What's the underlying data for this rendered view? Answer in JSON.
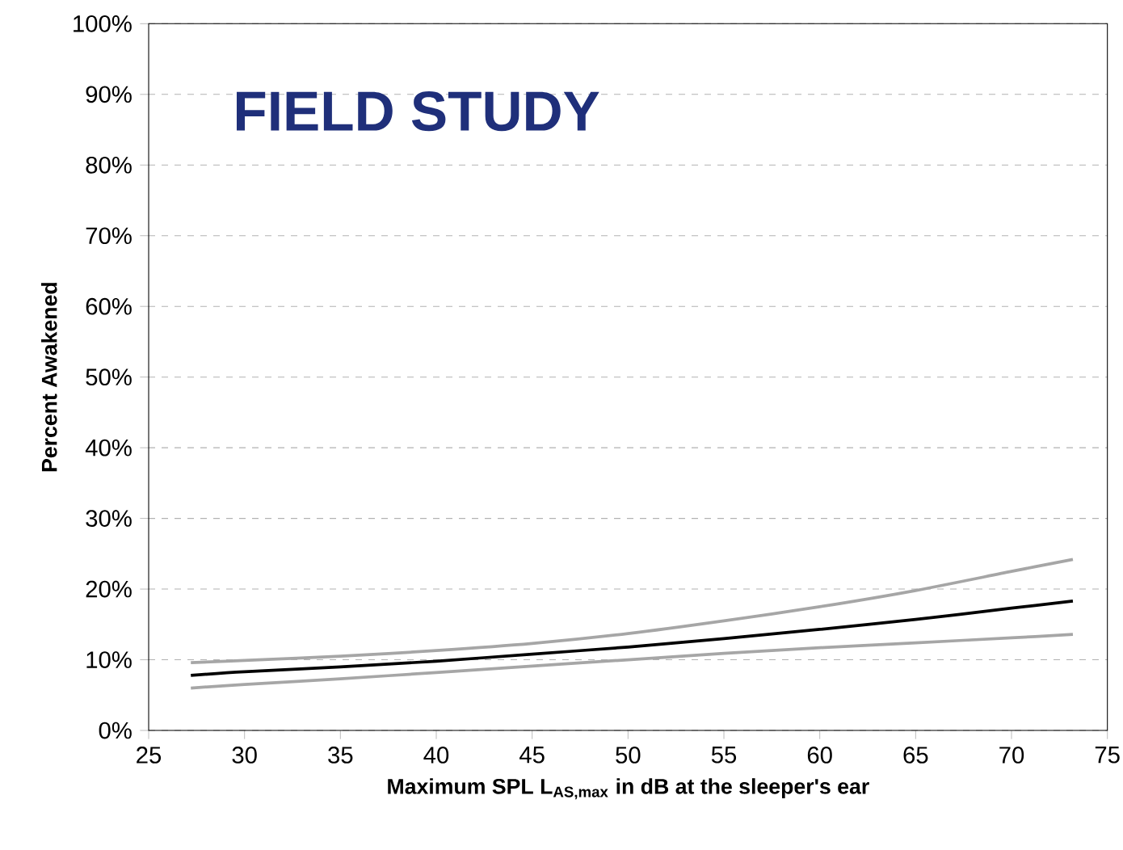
{
  "chart_data": {
    "type": "line",
    "title": "FIELD STUDY",
    "xlabel": "Maximum SPL L$_{AS,max}$ in dB at the sleeper's ear",
    "ylabel": "Percent Awakened",
    "x": [
      27.2,
      30,
      35,
      40,
      45,
      50,
      55,
      60,
      65,
      70,
      73.2
    ],
    "series": [
      {
        "color": "#a6a6a6",
        "values": [
          9.6,
          9.9,
          10.5,
          11.3,
          12.3,
          13.7,
          15.5,
          17.5,
          19.8,
          22.5,
          24.2
        ]
      },
      {
        "color": "#000000",
        "values": [
          7.8,
          8.3,
          9.0,
          9.8,
          10.8,
          11.8,
          13.0,
          14.3,
          15.7,
          17.3,
          18.3
        ]
      },
      {
        "color": "#a6a6a6",
        "values": [
          6.0,
          6.5,
          7.3,
          8.2,
          9.1,
          10.0,
          10.9,
          11.7,
          12.4,
          13.1,
          13.6
        ]
      }
    ],
    "xlim": [
      25,
      75
    ],
    "xticks": [
      25,
      30,
      35,
      40,
      45,
      50,
      55,
      60,
      65,
      70,
      75
    ],
    "ylim": [
      0,
      100
    ],
    "yticks": [
      {
        "value": 0,
        "label": "0%"
      },
      {
        "value": 10,
        "label": "10%"
      },
      {
        "value": 20,
        "label": "20%"
      },
      {
        "value": 30,
        "label": "30%"
      },
      {
        "value": 40,
        "label": "40%"
      },
      {
        "value": 50,
        "label": "50%"
      },
      {
        "value": 60,
        "label": "60%"
      },
      {
        "value": 70,
        "label": "70%"
      },
      {
        "value": 80,
        "label": "80%"
      },
      {
        "value": 90,
        "label": "90%"
      },
      {
        "value": 100,
        "label": "100%"
      }
    ],
    "grid": "y",
    "marker": "none",
    "line_style": "solid"
  }
}
